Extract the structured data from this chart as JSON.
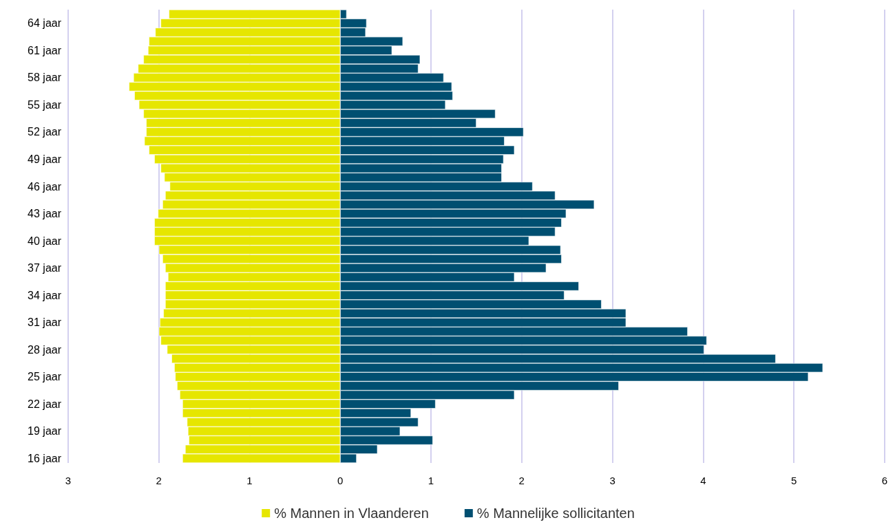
{
  "chart_data": {
    "type": "bar",
    "orientation": "horizontal",
    "categories": [
      null,
      "64 jaar",
      null,
      null,
      "61 jaar",
      null,
      null,
      "58 jaar",
      null,
      null,
      "55 jaar",
      null,
      null,
      "52 jaar",
      null,
      null,
      "49 jaar",
      null,
      null,
      "46 jaar",
      null,
      null,
      "43 jaar",
      null,
      null,
      "40 jaar",
      null,
      null,
      "37 jaar",
      null,
      null,
      "34 jaar",
      null,
      null,
      "31 jaar",
      null,
      null,
      "28 jaar",
      null,
      null,
      "25 jaar",
      null,
      null,
      "22 jaar",
      null,
      null,
      "19 jaar",
      null,
      null,
      "16 jaar"
    ],
    "series": [
      {
        "name": "% Mannen in Vlaanderen",
        "color": "#e6e600",
        "values": [
          -1.89,
          -1.98,
          -2.04,
          -2.11,
          -2.12,
          -2.17,
          -2.23,
          -2.28,
          -2.33,
          -2.27,
          -2.22,
          -2.17,
          -2.14,
          -2.14,
          -2.16,
          -2.11,
          -2.05,
          -1.98,
          -1.94,
          -1.88,
          -1.93,
          -1.96,
          -2.01,
          -2.05,
          -2.05,
          -2.05,
          -2.0,
          -1.96,
          -1.93,
          -1.9,
          -1.93,
          -1.93,
          -1.93,
          -1.95,
          -1.99,
          -2.0,
          -1.98,
          -1.91,
          -1.86,
          -1.83,
          -1.82,
          -1.8,
          -1.77,
          -1.74,
          -1.74,
          -1.69,
          -1.68,
          -1.67,
          -1.71,
          -1.74
        ]
      },
      {
        "name": "% Mannelijke sollicitanten",
        "color": "#004f71",
        "values": [
          0.07,
          0.29,
          0.28,
          0.69,
          0.57,
          0.88,
          0.86,
          1.14,
          1.23,
          1.24,
          1.16,
          1.71,
          1.5,
          2.02,
          1.81,
          1.92,
          1.8,
          1.78,
          1.78,
          2.12,
          2.37,
          2.8,
          2.49,
          2.44,
          2.37,
          2.08,
          2.43,
          2.44,
          2.27,
          1.92,
          2.63,
          2.47,
          2.88,
          3.15,
          3.15,
          3.83,
          4.04,
          4.01,
          4.8,
          5.32,
          5.16,
          3.07,
          1.92,
          1.05,
          0.78,
          0.86,
          0.66,
          1.02,
          0.41,
          0.18
        ]
      }
    ],
    "xlim": [
      -3,
      6
    ],
    "xticks": [
      {
        "value": -3,
        "label": "3"
      },
      {
        "value": -2,
        "label": "2"
      },
      {
        "value": -1,
        "label": "1"
      },
      0,
      1,
      2,
      3,
      4,
      5,
      6
    ],
    "stacked": true,
    "grid": "x",
    "legend": "bottom"
  }
}
